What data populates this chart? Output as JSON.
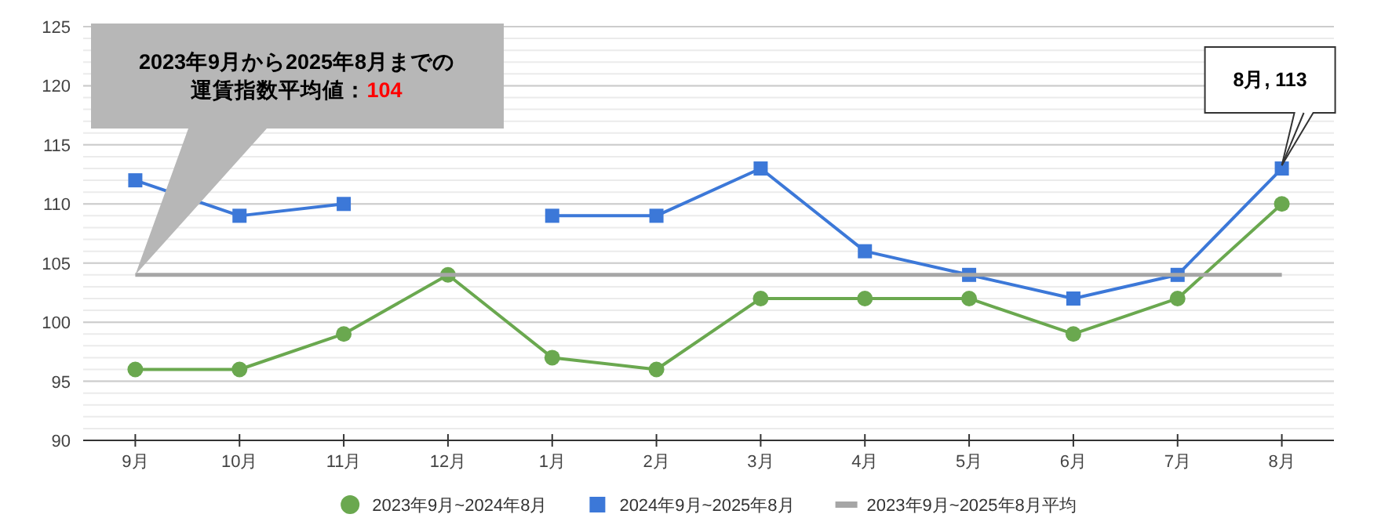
{
  "chart_data": {
    "type": "line",
    "categories": [
      "9月",
      "10月",
      "11月",
      "12月",
      "1月",
      "2月",
      "3月",
      "4月",
      "5月",
      "6月",
      "7月",
      "8月"
    ],
    "series": [
      {
        "name": "2023年9月~2024年8月",
        "color": "#6aa84f",
        "marker": "circle",
        "values": [
          96,
          96,
          99,
          104,
          97,
          96,
          102,
          102,
          102,
          99,
          102,
          110
        ]
      },
      {
        "name": "2024年9月~2025年8月",
        "color": "#3c78d8",
        "marker": "square",
        "values": [
          112,
          109,
          110,
          null,
          109,
          109,
          113,
          106,
          104,
          102,
          104,
          113
        ]
      },
      {
        "name": "2023年9月~2025年8月平均",
        "color": "#a6a6a6",
        "marker": "none",
        "values": [
          104,
          104,
          104,
          104,
          104,
          104,
          104,
          104,
          104,
          104,
          104,
          104
        ]
      }
    ],
    "ylim": [
      90,
      125
    ],
    "yticks": [
      90,
      95,
      100,
      105,
      110,
      115,
      120,
      125
    ],
    "grid": "y",
    "legend": "bottom",
    "annotations": [
      "2023年9月から2025年8月までの",
      "運賃指数平均値：104",
      {
        "text": "8月, 113",
        "x": "8月",
        "y": 113
      }
    ]
  }
}
